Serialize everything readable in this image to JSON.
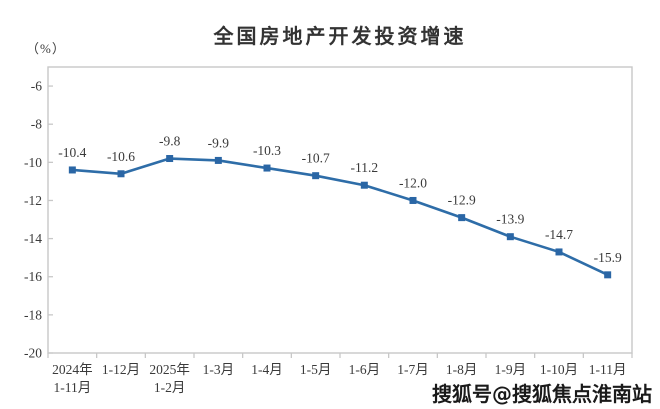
{
  "page": {
    "background": "#ffffff"
  },
  "chart_data": {
    "type": "line",
    "title": "全国房地产开发投资增速",
    "unit_label": "（%）",
    "categories": [
      "2024年\n1-11月",
      "1-12月",
      "2025年\n1-2月",
      "1-3月",
      "1-4月",
      "1-5月",
      "1-6月",
      "1-7月",
      "1-8月",
      "1-9月",
      "1-10月",
      "1-11月"
    ],
    "values": [
      -10.4,
      -10.6,
      -9.8,
      -9.9,
      -10.3,
      -10.7,
      -11.2,
      -12.0,
      -12.9,
      -13.9,
      -14.7,
      -15.9
    ],
    "data_labels": [
      "-10.4",
      "-10.6",
      "-9.8",
      "-9.9",
      "-10.3",
      "-10.7",
      "-11.2",
      "-12.0",
      "-12.9",
      "-13.9",
      "-14.7",
      "-15.9"
    ],
    "y_ticks": [
      -6,
      -8,
      -10,
      -12,
      -14,
      -16,
      -18,
      -20
    ],
    "y_tick_labels": [
      "-6",
      "-8",
      "-10",
      "-12",
      "-14",
      "-16",
      "-18",
      "-20"
    ],
    "ylim": [
      -20,
      -5
    ],
    "grid": false,
    "legend": "none",
    "xlabel": "",
    "ylabel": "（%）",
    "line_color": "#2E6DA8",
    "marker": "square",
    "marker_color": "#2A66A5",
    "text_color": "#3a3a3a",
    "axis_color": "#c8c8c8"
  },
  "watermark": {
    "text": "搜狐号@搜狐焦点淮南站"
  }
}
